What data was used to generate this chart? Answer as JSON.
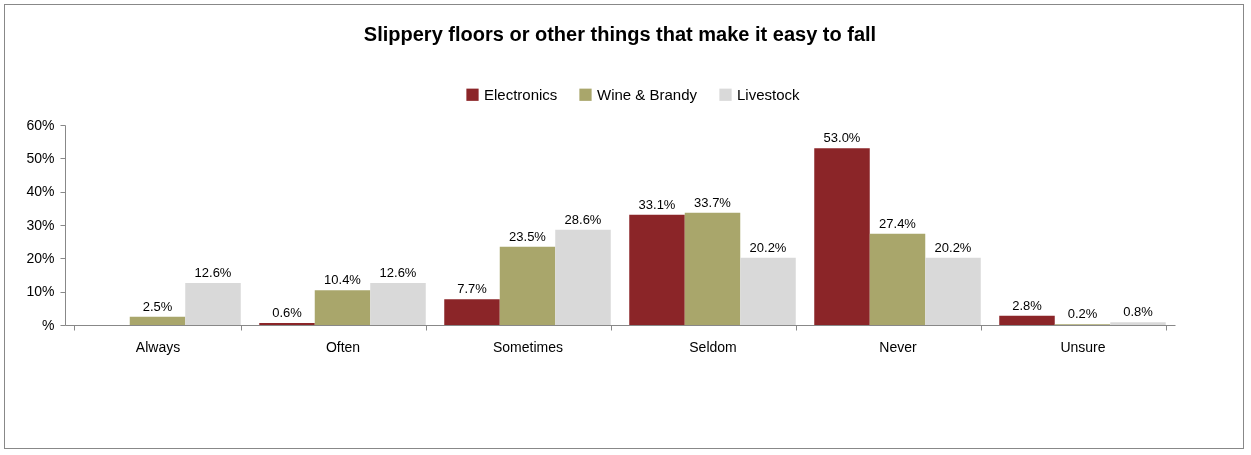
{
  "chart_data": {
    "type": "bar",
    "title": "Slippery floors or other things that make it easy to fall",
    "categories": [
      "Always",
      "Often",
      "Sometimes",
      "Seldom",
      "Never",
      "Unsure"
    ],
    "series": [
      {
        "name": "Electronics",
        "color": "#8b2528",
        "values": [
          null,
          0.6,
          7.7,
          33.1,
          53.0,
          2.8
        ],
        "value_labels": [
          null,
          "0.6%",
          "7.7%",
          "33.1%",
          "53.0%",
          "2.8%"
        ]
      },
      {
        "name": "Wine & Brandy",
        "color": "#a9a66b",
        "values": [
          2.5,
          10.4,
          23.5,
          33.7,
          27.4,
          0.2
        ],
        "value_labels": [
          "2.5%",
          "10.4%",
          "23.5%",
          "33.7%",
          "27.4%",
          "0.2%"
        ]
      },
      {
        "name": "Livestock",
        "color": "#d9d9d9",
        "values": [
          12.6,
          12.6,
          28.6,
          20.2,
          20.2,
          0.8
        ],
        "value_labels": [
          "12.6%",
          "12.6%",
          "28.6%",
          "20.2%",
          "20.2%",
          "0.8%"
        ]
      }
    ],
    "ylim": [
      0,
      60
    ],
    "yticks": [
      {
        "value": 0,
        "label": "%"
      },
      {
        "value": 10,
        "label": "10%"
      },
      {
        "value": 20,
        "label": "20%"
      },
      {
        "value": 30,
        "label": "30%"
      },
      {
        "value": 40,
        "label": "40%"
      },
      {
        "value": 50,
        "label": "50%"
      },
      {
        "value": 60,
        "label": "60%"
      }
    ],
    "grid": false,
    "legend": "top"
  }
}
